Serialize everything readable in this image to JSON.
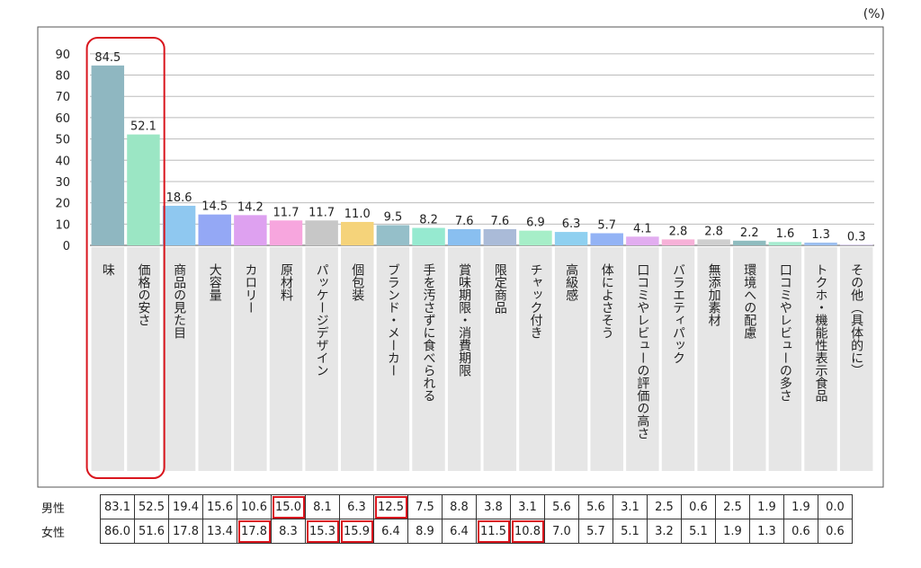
{
  "unit_label": "(%)",
  "chart_data": {
    "type": "bar",
    "categories": [
      "味",
      "価格の安さ",
      "商品の見た目",
      "大容量",
      "カロリー",
      "原材料",
      "パッケージデザイン",
      "個包装",
      "ブランド・メーカー",
      "手を汚さずに食べられる",
      "賞味期限・消費期限",
      "限定商品",
      "チャック付き",
      "高級感",
      "体によさそう",
      "口コミやレビューの評価の高さ",
      "バラエティパック",
      "無添加素材",
      "環境への配慮",
      "口コミやレビューの多さ",
      "トクホ・機能性表示食品",
      "その他（具体的に）"
    ],
    "values": [
      84.5,
      52.1,
      18.6,
      14.5,
      14.2,
      11.7,
      11.7,
      11.0,
      9.5,
      8.2,
      7.6,
      7.6,
      6.9,
      6.3,
      5.7,
      4.1,
      2.8,
      2.8,
      2.2,
      1.6,
      1.3,
      0.3
    ],
    "value_labels": [
      "84.5",
      "52.1",
      "18.6",
      "14.5",
      "14.2",
      "11.7",
      "11.7",
      "11.0",
      "9.5",
      "8.2",
      "7.6",
      "7.6",
      "6.9",
      "6.3",
      "5.7",
      "4.1",
      "2.8",
      "2.8",
      "2.2",
      "1.6",
      "1.3",
      "0.3"
    ],
    "colors": [
      "#8fb7c1",
      "#9be6c4",
      "#8fc8f0",
      "#94a8f5",
      "#dea1f0",
      "#f7a6de",
      "#c7c7c7",
      "#f5d37a",
      "#95bfc9",
      "#96ead0",
      "#89bff0",
      "#aabbd8",
      "#a6eec8",
      "#8fd0f0",
      "#93b3f5",
      "#e2adf0",
      "#f7b1d8",
      "#cfcfcf",
      "#8fbcbf",
      "#a7ecd0",
      "#9cbfef",
      "#c9b9e5"
    ],
    "yticks": [
      0,
      10,
      20,
      30,
      40,
      50,
      60,
      70,
      80,
      90
    ],
    "ylim": [
      0,
      95
    ],
    "grid": true,
    "highlight_category_index": 0,
    "highlight_span": 2,
    "highlight_color": "#d9161e"
  },
  "breakdown_table": {
    "rows": [
      {
        "label": "男性",
        "values": [
          "83.1",
          "52.5",
          "19.4",
          "15.6",
          "10.6",
          "15.0",
          "8.1",
          "6.3",
          "12.5",
          "7.5",
          "8.8",
          "3.8",
          "3.1",
          "5.6",
          "5.6",
          "3.1",
          "2.5",
          "0.6",
          "2.5",
          "1.9",
          "1.9",
          "0.0"
        ],
        "highlight": [
          5,
          8
        ]
      },
      {
        "label": "女性",
        "values": [
          "86.0",
          "51.6",
          "17.8",
          "13.4",
          "17.8",
          "8.3",
          "15.3",
          "15.9",
          "6.4",
          "8.9",
          "6.4",
          "11.5",
          "10.8",
          "7.0",
          "5.7",
          "5.1",
          "3.2",
          "5.1",
          "1.9",
          "1.3",
          "0.6",
          "0.6"
        ],
        "highlight": [
          4,
          6,
          7,
          11,
          12
        ]
      }
    ]
  }
}
